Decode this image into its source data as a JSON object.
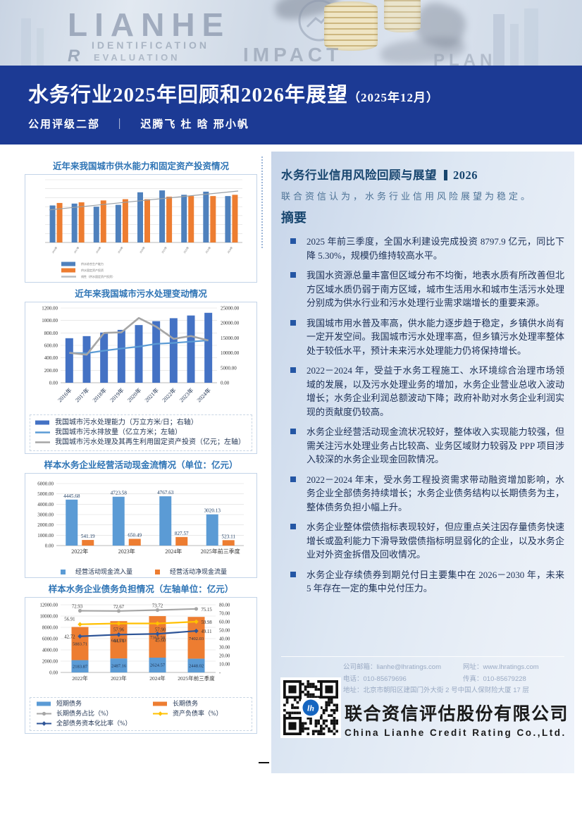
{
  "banner": {
    "watermarks": {
      "brand": "LIANHE",
      "line2": "IDENTIFICATION",
      "line3": "EVALUATION",
      "r": "R",
      "impact": "IMPACT",
      "plan": "PLAN"
    }
  },
  "title_block": {
    "title_main": "水务行业2025年回顾和2026年展望",
    "title_paren": "（2025年12月）",
    "dept": "公用评级二部",
    "sep": "｜",
    "authors": "迟腾飞 杜 晗 邢小帆"
  },
  "panel": {
    "heading": "水务行业信用风险回顾与展望",
    "heading_year": "2026",
    "intro": "联合资信认为，水务行业信用风险展望为稳定。",
    "summary_title": "摘要",
    "bullets": [
      "2025 年前三季度，全国水利建设完成投资 8797.9 亿元，同比下降 5.30%，规模仍维持较高水平。",
      "我国水资源总量丰富但区域分布不均衡，地表水质有所改善但北方区域水质仍弱于南方区域，城市生活用水和城市生活污水处理分别成为供水行业和污水处理行业需求端增长的重要来源。",
      "我国城市用水普及率高，供水能力逐步趋于稳定，乡镇供水尚有一定开发空间。我国城市污水处理率高，但乡镇污水处理率整体处于较低水平，预计未来污水处理能力仍将保持增长。",
      "2022－2024 年，受益于水务工程施工、水环境综合治理市场领域的发展，以及污水处理业务的增加，水务企业营业总收入波动增长；水务企业利润总额波动下降；政府补助对水务企业利润实现的贡献度仍较高。",
      "水务企业经营活动现金流状况较好，整体收入实现能力较强，但需关注污水处理业务占比较高、业务区域财力较弱及 PPP 项目涉入较深的水务企业现金回款情况。",
      "2022－2024 年末，受水务工程投资需求带动融资增加影响，水务企业全部债务持续增长；水务企业债务结构以长期债务为主，整体债务负担小幅上升。",
      "水务企业整体偿债指标表现较好，但应重点关注因存量债务快速增长或盈利能力下滑导致偿债指标明显弱化的企业，以及水务企业对外资金拆借及回收情况。",
      "水务企业存续债券到期兑付日主要集中在 2026－2030 年，未来 5 年存在一定的集中兑付压力。"
    ]
  },
  "contact": {
    "email_label": "公司邮箱：",
    "email": "lianhe@lhratings.com",
    "web_label": "网址：",
    "web": "www.lhratings.com",
    "phone_label": "电话：",
    "phone": "010-85679696",
    "fax_label": "传真：",
    "fax": "010-85679228",
    "address_label": "地址：",
    "address": "北京市朝阳区建国门外大街 2 号中国人保财险大厦 17 层"
  },
  "company": {
    "name_cn": "联合资信评估股份有限公司",
    "name_en": "China Lianhe Credit Rating Co.,Ltd."
  },
  "colors": {
    "band_navy": "#1c3a94",
    "chart_title_blue": "#2e74b5",
    "panel_heading": "#17456e",
    "bar_blue": "#4472c4",
    "bar_light_blue": "#5b9bd5",
    "bar_orange": "#ed7d31",
    "line_gray": "#a6a6a6",
    "line_yellow": "#ffc000",
    "line_dark_blue": "#2f5597"
  },
  "chart_data": [
    {
      "type": "bar",
      "title": "近年来我国城市供水能力和固定资产投资情况",
      "categories": [
        "2016年",
        "2017年",
        "2018年",
        "2019年",
        "2020年",
        "2021年",
        "2022年",
        "2023年",
        "2024年"
      ],
      "y_axis_visible": false,
      "unit": "relative_height_pct",
      "series": [
        {
          "name": "供水综合生产能力",
          "color": "#4f81bd",
          "values": [
            59,
            62,
            57,
            60,
            80,
            83,
            76,
            81,
            74
          ]
        },
        {
          "name": "供水固定资产投资",
          "color": "#ed7d31",
          "values": [
            63,
            64,
            67,
            69,
            69,
            73,
            74,
            74,
            76
          ]
        }
      ],
      "trendline": {
        "name": "线性（供水固定资产投资）",
        "color": "#9aa0a6",
        "start": 52,
        "end": 82
      },
      "legend_position": "bottom-left"
    },
    {
      "type": "bar+line",
      "title": "近年来我国城市污水处理变动情况",
      "categories": [
        "2016年",
        "2017年",
        "2018年",
        "2019年",
        "2020年",
        "2021年",
        "2022年",
        "2023年",
        "2024年"
      ],
      "left_axis": {
        "min": 0,
        "max": 1200,
        "step": 200
      },
      "right_axis": {
        "min": 0,
        "max": 25000,
        "step": 5000
      },
      "series": [
        {
          "name": "我国城市污水处理能力（万立方米/日；右轴）",
          "kind": "bar",
          "axis": "right",
          "color": "#4472c4",
          "values": [
            14900,
            15600,
            16800,
            17700,
            19300,
            20600,
            21600,
            22500,
            23400
          ]
        },
        {
          "name": "我国城市污水排放量（亿立方米；左轴）",
          "kind": "line",
          "axis": "left",
          "color": "#5b9bd5",
          "values": [
            480,
            475,
            515,
            550,
            580,
            625,
            640,
            660,
            680
          ]
        },
        {
          "name": "我国城市污水处理及其再生利用固定资产投资（亿元；左轴）",
          "kind": "line",
          "axis": "left",
          "color": "#a6a6a6",
          "values": [
            480,
            450,
            800,
            810,
            1040,
            900,
            705,
            750,
            680
          ]
        }
      ],
      "legend_position": "bottom-left"
    },
    {
      "type": "bar",
      "title": "样本水务企业经营活动现金流情况（单位：亿元）",
      "categories": [
        "2022年",
        "2023年",
        "2024年",
        "2025年前三季度"
      ],
      "y_axis": {
        "min": 0,
        "max": 6000,
        "step": 1000
      },
      "series": [
        {
          "name": "经营活动现金流入量",
          "color": "#5b9bd5",
          "values": [
            4445.68,
            4723.58,
            4767.63,
            3020.13
          ]
        },
        {
          "name": "经营活动净现金流量",
          "color": "#ed7d31",
          "values": [
            541.19,
            650.49,
            827.57,
            523.11
          ]
        }
      ],
      "data_labels": true,
      "legend_position": "bottom-center"
    },
    {
      "type": "stacked-bar+line",
      "title": "样本水务企业债务负担情况（左轴单位：亿元）",
      "categories": [
        "2022年",
        "2023年",
        "2024年",
        "2025年前三季度"
      ],
      "left_axis": {
        "min": 0,
        "max": 12000,
        "step": 2000
      },
      "right_axis": {
        "min": 0,
        "max": 80,
        "step": 10,
        "zero_label": "-"
      },
      "bar_series": [
        {
          "name": "短期债务",
          "color": "#5b9bd5",
          "values": [
            2183.87,
            2487.16,
            2624.57,
            2448.02
          ]
        },
        {
          "name": "长期债务",
          "color": "#ed7d31",
          "values": [
            5883.71,
            6613.93,
            7365.58,
            7402.03
          ]
        }
      ],
      "line_series": [
        {
          "name": "长期债务占比（%）",
          "color": "#a6a6a6",
          "marker": "circle",
          "values": [
            72.93,
            72.67,
            73.72,
            75.15
          ]
        },
        {
          "name": "资产负债率（%）",
          "color": "#ffc000",
          "marker": "diamond",
          "values": [
            56.91,
            57.96,
            57.9,
            59.98
          ]
        },
        {
          "name": "全部债务资本化比率（%）",
          "color": "#2f5597",
          "marker": "diamond",
          "values": [
            42.72,
            44.74,
            45.6,
            49.11
          ]
        }
      ],
      "data_labels": true,
      "legend_position": "bottom-left"
    }
  ]
}
